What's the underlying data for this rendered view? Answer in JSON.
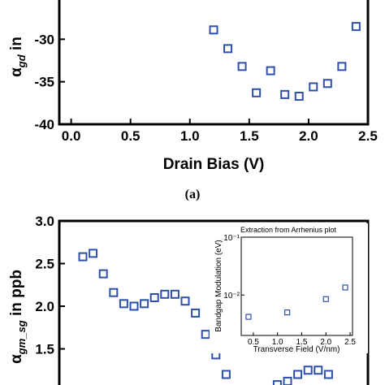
{
  "chart_data": [
    {
      "type": "scatter",
      "panel": "top",
      "title": "",
      "xlabel": "Drain Bias (V)",
      "ylabel_symbol": "α",
      "ylabel_sub": "gd",
      "ylabel_rest": " in",
      "xlim": [
        -0.1,
        2.5
      ],
      "ylim": [
        -40,
        -25
      ],
      "xticks": [
        0.0,
        0.5,
        1.0,
        1.5,
        2.0,
        2.5
      ],
      "xtick_labels": [
        "0.0",
        "0.5",
        "1.0",
        "1.5",
        "2.0",
        "2.5"
      ],
      "yticks": [
        -40,
        -35,
        -30
      ],
      "ytick_labels": [
        "-40",
        "-35",
        "-30"
      ],
      "marker": "open-square",
      "color": "#2e4fa8",
      "series": [
        {
          "x": [
            1.2,
            1.32,
            1.44,
            1.56,
            1.68,
            1.8,
            1.92,
            2.04,
            2.16,
            2.28,
            2.4
          ],
          "y": [
            -28.9,
            -31.1,
            -33.2,
            -36.3,
            -33.7,
            -36.5,
            -36.7,
            -35.6,
            -35.2,
            -33.2,
            -28.5
          ]
        }
      ],
      "caption": "(a)"
    },
    {
      "type": "scatter",
      "panel": "bottom",
      "title": "",
      "ylabel_symbol": "α",
      "ylabel_sub": "gm_sg",
      "ylabel_rest": " in ppb",
      "ylim": [
        1.0,
        3.0
      ],
      "yticks": [
        1.5,
        2.0,
        2.5,
        3.0
      ],
      "ytick_labels": [
        "1.5",
        "2.0",
        "2.5",
        "3.0"
      ],
      "marker": "open-square",
      "color": "#2e4fa8",
      "series": [
        {
          "x_index": [
            0,
            1,
            2,
            3,
            4,
            5,
            6,
            7,
            8,
            9,
            10,
            11,
            12,
            13,
            14,
            15,
            16,
            17,
            18,
            19,
            20,
            21,
            22,
            23,
            24
          ],
          "y": [
            2.58,
            2.62,
            2.38,
            2.16,
            2.03,
            2.0,
            2.03,
            2.1,
            2.14,
            2.14,
            2.06,
            1.92,
            1.67,
            1.43,
            1.2,
            1.0,
            0.95,
            0.92,
            0.97,
            1.08,
            1.12,
            1.2,
            1.25,
            1.25,
            1.2
          ]
        }
      ],
      "inset": {
        "type": "scatter",
        "title": "Extraction from Arrhenius plot",
        "xlabel": "Transverse Field (V/nm)",
        "ylabel": "Bandgap Modulation (eV)",
        "xlim": [
          0.25,
          2.55
        ],
        "yscale": "log",
        "ylim": [
          0.002,
          0.1
        ],
        "xticks": [
          0.5,
          1.0,
          1.5,
          2.0,
          2.5
        ],
        "xtick_labels": [
          "0.5",
          "1.0",
          "1.5",
          "2.0",
          "2.5"
        ],
        "ytick_labels": [
          "10⁻¹",
          "10⁻²"
        ],
        "yticks": [
          0.1,
          0.01
        ],
        "series": [
          {
            "x": [
              0.4,
              1.2,
              2.0,
              2.4
            ],
            "y": [
              0.0042,
              0.005,
              0.0085,
              0.0135
            ]
          }
        ]
      }
    }
  ]
}
